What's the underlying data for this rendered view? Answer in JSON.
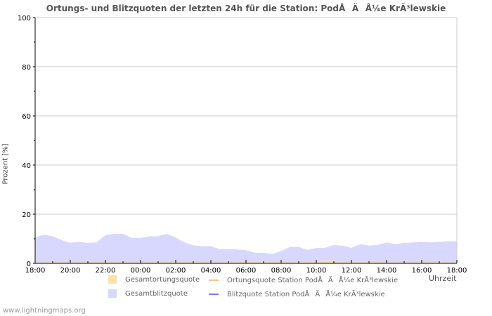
{
  "chart_data": {
    "type": "area",
    "title": "Ortungs- und Blitzquoten der letzten 24h für die Station: PodÅÄÅ¼e KrÃ³lewskie",
    "xlabel": "Uhrzeit",
    "ylabel": "Prozent   [%]",
    "ylim": [
      0,
      100
    ],
    "yticks": [
      0,
      20,
      40,
      60,
      80,
      100
    ],
    "xticks": [
      "18:00",
      "20:00",
      "22:00",
      "00:00",
      "02:00",
      "04:00",
      "06:00",
      "08:00",
      "10:00",
      "12:00",
      "14:00",
      "16:00",
      "18:00"
    ],
    "x_hours": [
      0,
      0.5,
      1,
      1.5,
      2,
      2.5,
      3,
      3.5,
      4,
      4.5,
      5,
      5.5,
      6,
      6.5,
      7,
      7.5,
      8,
      8.5,
      9,
      9.5,
      10,
      10.5,
      11,
      11.5,
      12,
      12.5,
      13,
      13.5,
      14,
      14.5,
      15,
      15.5,
      16,
      16.5,
      17,
      17.5,
      18,
      18.5,
      19,
      19.5,
      20,
      20.5,
      21,
      21.5,
      22,
      22.5,
      23,
      23.5,
      24
    ],
    "grid": true,
    "series": [
      {
        "name": "Gesamtortungsquote",
        "style": "area",
        "color": "#ffe0a8",
        "values": [
          0.3,
          0.5,
          0.5,
          0.5,
          0.5,
          0.5,
          0.5,
          0.5,
          0.5,
          0.5,
          0.5,
          0.5,
          0.5,
          0.5,
          0.5,
          0.5,
          0.5,
          0.5,
          0.5,
          0.5,
          0.5,
          0.5,
          0.5,
          0.5,
          0.6,
          0.8,
          0.8,
          0.6,
          0.5,
          0.5,
          0.5,
          0.5,
          0.8,
          1.2,
          1.2,
          0.8,
          0.6,
          0.8,
          0.6,
          0.5,
          0.5,
          0.5,
          0.5,
          0.5,
          0.5,
          0.5,
          0.5,
          0.5,
          0.5
        ]
      },
      {
        "name": "Gesamtblitzquote",
        "style": "area",
        "color": "#d8d8ff",
        "values": [
          10.5,
          11.7,
          11,
          9.5,
          8.3,
          8.8,
          8.3,
          8.5,
          11.5,
          12,
          12,
          10.3,
          10.3,
          11,
          11,
          12,
          10.5,
          8.5,
          7.3,
          7,
          7,
          5.8,
          5.8,
          5.7,
          5.3,
          4.3,
          4.3,
          3.8,
          5,
          6.7,
          6.7,
          5.5,
          6.2,
          6.3,
          7.5,
          7.2,
          6.3,
          7.8,
          7.2,
          7.5,
          8.5,
          7.8,
          8.3,
          8.5,
          8.8,
          8.5,
          8.8,
          9,
          9
        ]
      },
      {
        "name": "Ortungsquote Station PodÅÄÅ¼e KrÃ³lewskie",
        "style": "line",
        "color": "#f5c77e",
        "values": []
      },
      {
        "name": "Blitzquote Station PodÅÄÅ¼e KrÃ³lewskie",
        "style": "line",
        "color": "#7b7bef",
        "values": []
      }
    ]
  },
  "footer": "www.lightningmaps.org"
}
